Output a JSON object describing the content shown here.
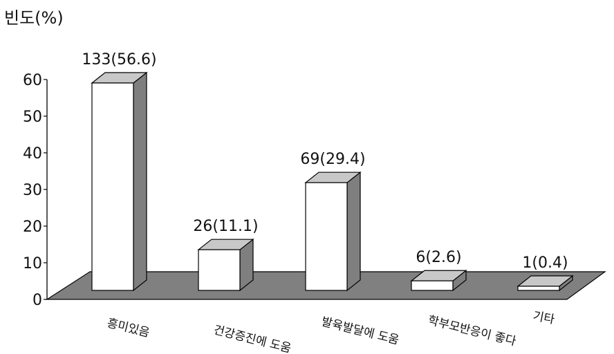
{
  "chart_data": {
    "type": "bar",
    "title": "",
    "xlabel": "",
    "ylabel": "빈도(%)",
    "ylim": [
      0,
      60
    ],
    "yticks": [
      0,
      10,
      20,
      30,
      40,
      50,
      60
    ],
    "style": "3d",
    "grid": false,
    "categories": [
      "흥미있음",
      "건강증진에 도움",
      "발육발달에 도움",
      "학부모반응이 좋다",
      "기타"
    ],
    "values": [
      56.6,
      11.1,
      29.4,
      2.6,
      0.4
    ],
    "data_labels": [
      "133(56.6)",
      "26(11.1)",
      "69(29.4)",
      "6(2.6)",
      "1(0.4)"
    ],
    "colors": {
      "bar_front": "#ffffff",
      "bar_side": "#7f7f7f",
      "bar_top": "#c8c8c8",
      "floor": "#808080",
      "outline": "#000000"
    }
  }
}
